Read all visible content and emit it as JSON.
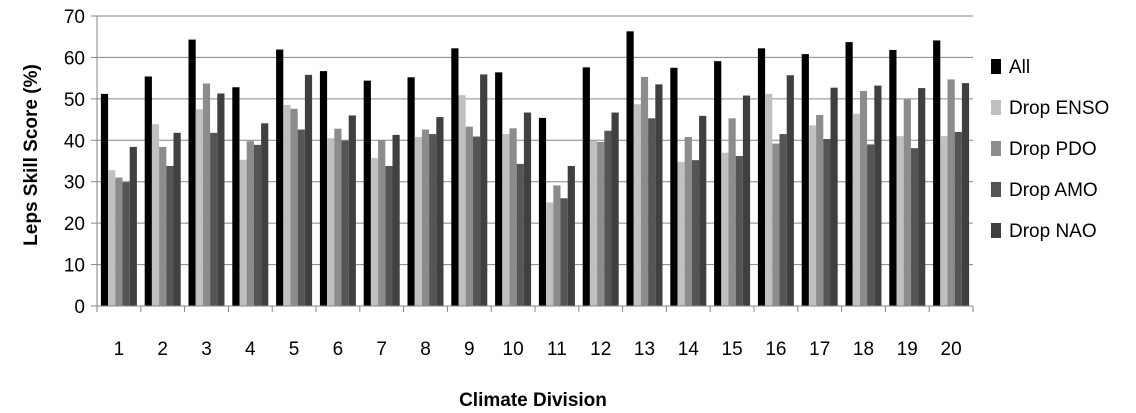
{
  "chart_data": {
    "type": "bar",
    "title": "",
    "xlabel": "Climate Division",
    "ylabel": "Leps Skill Score (%)",
    "ylim": [
      0,
      70
    ],
    "yticks": [
      0,
      10,
      20,
      30,
      40,
      50,
      60,
      70
    ],
    "grid": true,
    "legend_position": "right",
    "categories": [
      "1",
      "2",
      "3",
      "4",
      "5",
      "6",
      "7",
      "8",
      "9",
      "10",
      "11",
      "12",
      "13",
      "14",
      "15",
      "16",
      "17",
      "18",
      "19",
      "20"
    ],
    "series": [
      {
        "name": "All",
        "color": "#000000",
        "values": [
          51.2,
          55.4,
          64.3,
          52.8,
          61.9,
          56.7,
          54.4,
          55.2,
          62.2,
          56.4,
          45.4,
          57.6,
          66.3,
          57.5,
          59.1,
          62.2,
          60.8,
          63.7,
          61.8,
          64.1
        ]
      },
      {
        "name": "Drop ENSO",
        "color": "#c0c0c0",
        "values": [
          32.8,
          43.9,
          47.5,
          35.3,
          48.5,
          40.5,
          35.7,
          40.8,
          50.9,
          41.5,
          25.0,
          39.9,
          48.7,
          34.8,
          37.0,
          51.2,
          43.6,
          46.4,
          41.0,
          41.0
        ]
      },
      {
        "name": "Drop PDO",
        "color": "#8c8c8c",
        "values": [
          31.0,
          38.4,
          53.7,
          39.8,
          47.6,
          42.8,
          40.0,
          42.6,
          43.3,
          42.9,
          29.1,
          39.6,
          55.3,
          40.8,
          45.3,
          39.2,
          46.1,
          51.9,
          49.9,
          54.7
        ]
      },
      {
        "name": "Drop AMO",
        "color": "#555555",
        "values": [
          29.9,
          33.8,
          41.8,
          38.9,
          42.6,
          39.9,
          33.8,
          41.5,
          40.9,
          34.3,
          26.0,
          42.3,
          45.3,
          35.2,
          36.2,
          41.5,
          40.3,
          39.0,
          38.1,
          42.0
        ]
      },
      {
        "name": "Drop NAO",
        "color": "#404040",
        "values": [
          38.4,
          41.8,
          51.3,
          44.1,
          55.8,
          46.0,
          41.3,
          45.6,
          55.9,
          46.7,
          33.8,
          46.7,
          53.5,
          45.9,
          50.8,
          55.7,
          52.7,
          53.2,
          52.6,
          53.8
        ]
      }
    ]
  }
}
